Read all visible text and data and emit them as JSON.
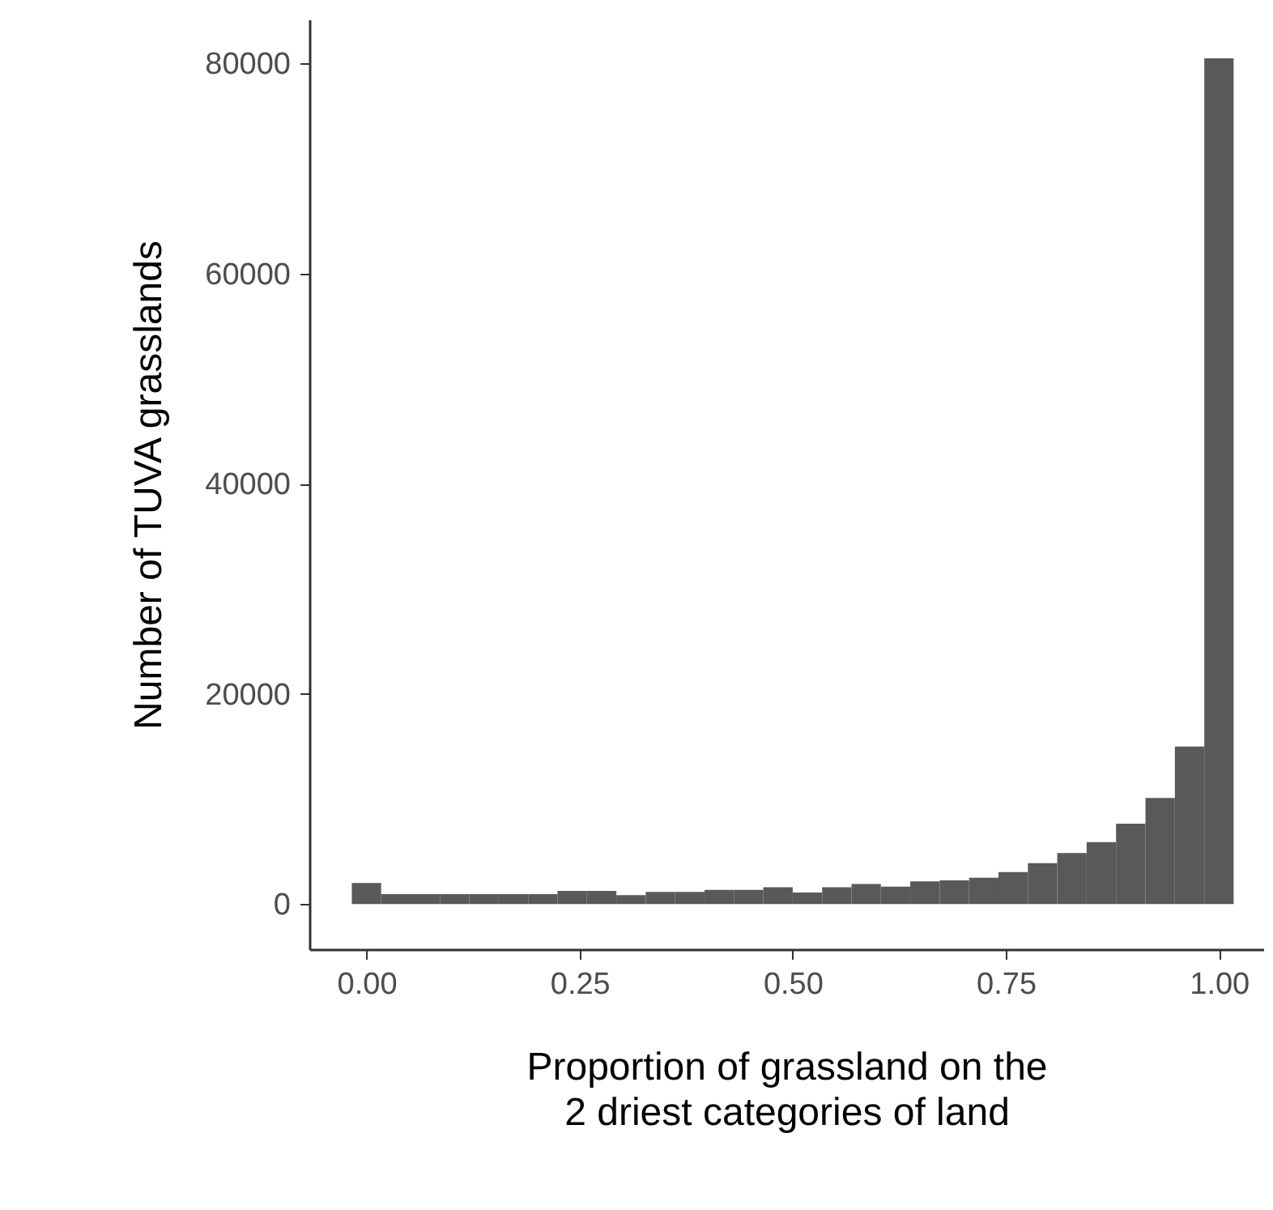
{
  "chart_data": {
    "type": "histogram",
    "xlabel": "Proportion of grassland on the\n2 driest categories of land",
    "ylabel": "Number of TUVA grasslands",
    "bins": [
      -0.0172,
      0.0172,
      0.0517,
      0.0862,
      0.1207,
      0.1552,
      0.1897,
      0.2241,
      0.2586,
      0.2931,
      0.3276,
      0.3621,
      0.3966,
      0.431,
      0.4655,
      0.5,
      0.5345,
      0.569,
      0.6034,
      0.6379,
      0.6724,
      0.7069,
      0.7414,
      0.7759,
      0.8103,
      0.8448,
      0.8793,
      0.9138,
      0.9483,
      0.9828,
      1.0172
    ],
    "values": [
      2000,
      950,
      950,
      950,
      950,
      950,
      950,
      1250,
      1250,
      850,
      1150,
      1150,
      1350,
      1350,
      1600,
      1100,
      1600,
      1900,
      1650,
      2150,
      2250,
      2500,
      3050,
      3900,
      4850,
      5900,
      7650,
      10100,
      15000,
      80500
    ],
    "color": "#595959",
    "xlim": [
      -0.067,
      1.052
    ],
    "ylim": [
      -4300,
      84200
    ],
    "xticks": [
      {
        "value": 0,
        "label": "0.00"
      },
      {
        "value": 0.25,
        "label": "0.25"
      },
      {
        "value": 0.5,
        "label": "0.50"
      },
      {
        "value": 0.75,
        "label": "0.75"
      },
      {
        "value": 1,
        "label": "1.00"
      }
    ],
    "yticks": [
      0,
      20000,
      40000,
      60000,
      80000
    ],
    "grid": false
  }
}
